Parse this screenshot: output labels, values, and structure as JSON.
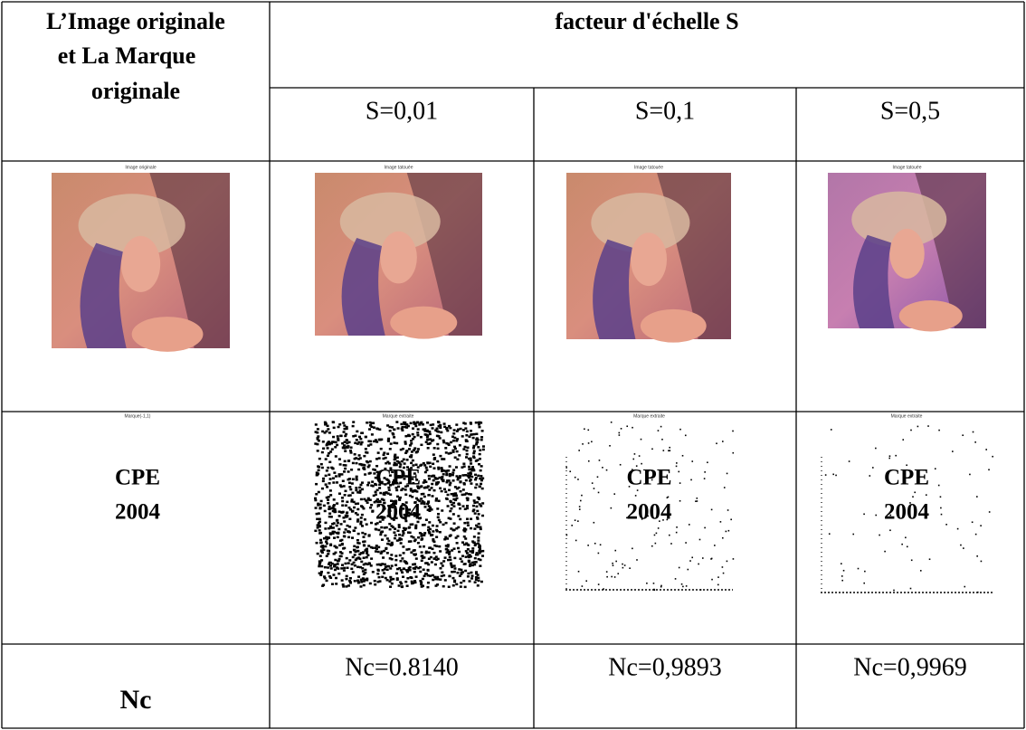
{
  "table": {
    "corner": [
      "L’Image originale",
      "et  La Marque",
      "originale"
    ],
    "group_header": "facteur d'échelle S",
    "columns": [
      "S=0,01",
      "S=0,1",
      "S=0,5"
    ],
    "image_row": {
      "captions": [
        "Image originale",
        "Image tatouée",
        "Image tatouée",
        "Image tatouée"
      ]
    },
    "mark_row": {
      "captions": [
        "Marque(-1,1)",
        "Marque extraite",
        "Marque extraite",
        "Marque extraite"
      ],
      "mark_text": [
        "CPE",
        "2004"
      ]
    },
    "nc_row": {
      "label": "Nc",
      "values": [
        "Nc=0.8140",
        "Nc=0,9893",
        "Nc=0,9969"
      ]
    }
  }
}
